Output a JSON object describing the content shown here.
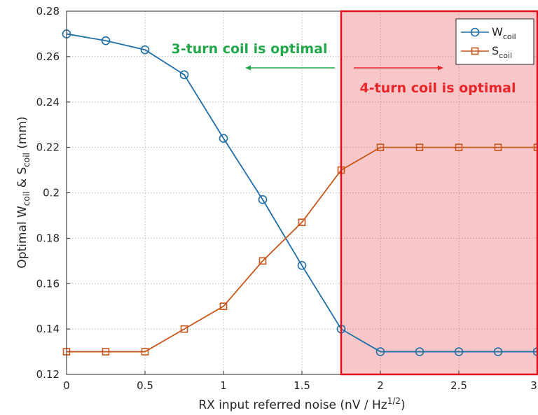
{
  "chart_data": {
    "type": "line",
    "x": [
      0,
      0.25,
      0.5,
      0.75,
      1,
      1.25,
      1.5,
      1.75,
      2,
      2.25,
      2.5,
      2.75,
      3
    ],
    "series": [
      {
        "name": "W",
        "subscript": "coil",
        "color": "#1f6fa8",
        "marker": "circle",
        "values": [
          0.27,
          0.267,
          0.263,
          0.252,
          0.224,
          0.197,
          0.168,
          0.14,
          0.13,
          0.13,
          0.13,
          0.13,
          0.13
        ]
      },
      {
        "name": "S",
        "subscript": "coil",
        "color": "#c8561a",
        "marker": "square",
        "values": [
          0.13,
          0.13,
          0.13,
          0.14,
          0.15,
          0.17,
          0.187,
          0.21,
          0.22,
          0.22,
          0.22,
          0.22,
          0.22
        ]
      }
    ],
    "xlim": [
      0,
      3
    ],
    "ylim": [
      0.12,
      0.28
    ],
    "xticks": [
      "0",
      "0.5",
      "1",
      "1.5",
      "2",
      "2.5",
      "3"
    ],
    "yticks": [
      "0.12",
      "0.14",
      "0.16",
      "0.18",
      "0.2",
      "0.22",
      "0.24",
      "0.26",
      "0.28"
    ],
    "xlabel": {
      "main": "RX input referred noise (nV / Hz",
      "sup": "1/2",
      "end": ")"
    },
    "ylabel": {
      "p1": "Optimal W",
      "sub1": "coil",
      "p2": " & S",
      "sub2": "coil",
      "p3": " (mm)"
    },
    "grid": true,
    "legend_position": "top-right",
    "highlight_region": {
      "x_from": 1.75,
      "x_to": 3,
      "color": "#e8474f"
    },
    "annotations": [
      {
        "text": "3-turn coil is optimal",
        "color": "#22a84a",
        "arrow": "left"
      },
      {
        "text": "4-turn coil is optimal",
        "color": "#e8262a",
        "arrow": "right"
      }
    ]
  }
}
